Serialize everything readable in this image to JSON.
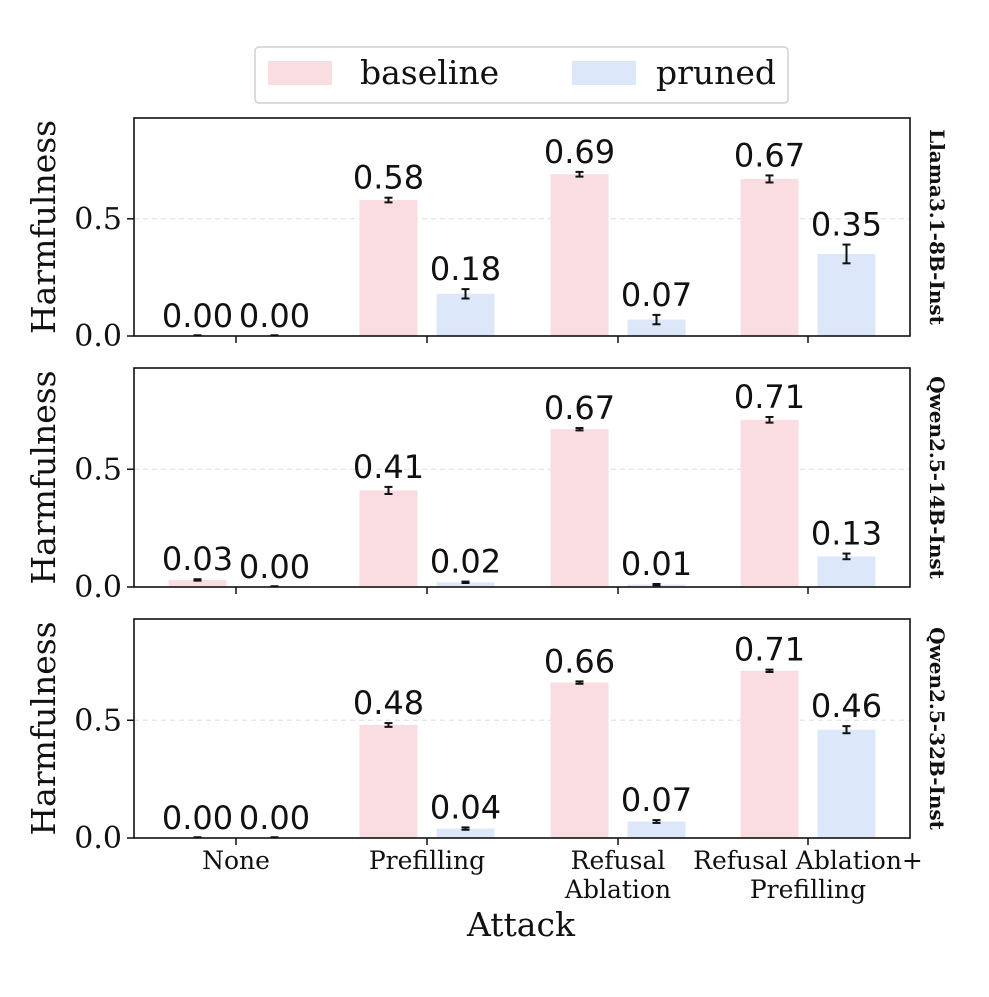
{
  "chart_data": {
    "type": "bar",
    "xlabel": "Attack",
    "ylabel": "Harmfulness",
    "ylim": [
      0,
      0.93
    ],
    "yticks": [
      "0.0",
      "0.5"
    ],
    "categories": [
      [
        "None"
      ],
      [
        "Prefilling"
      ],
      [
        "Refusal",
        "Ablation"
      ],
      [
        "Refusal Ablation+",
        "Prefilling"
      ]
    ],
    "legend": {
      "position": "top-center",
      "entries": [
        {
          "name": "baseline",
          "color": "#f9dde0"
        },
        {
          "name": "pruned",
          "color": "#dce7f9"
        }
      ]
    },
    "grid": "horizontal dashed at 0.5",
    "panels": [
      {
        "model": "Llama3.1-8B-Inst",
        "series": [
          {
            "name": "baseline",
            "values": [
              0.0,
              0.58,
              0.69,
              0.67
            ],
            "labels": [
              "0.00",
              "0.58",
              "0.69",
              "0.67"
            ],
            "errors": [
              0.0,
              0.01,
              0.01,
              0.015
            ]
          },
          {
            "name": "pruned",
            "values": [
              0.0,
              0.18,
              0.07,
              0.35
            ],
            "labels": [
              "0.00",
              "0.18",
              "0.07",
              "0.35"
            ],
            "errors": [
              0.0,
              0.02,
              0.02,
              0.04
            ]
          }
        ]
      },
      {
        "model": "Qwen2.5-14B-Inst",
        "series": [
          {
            "name": "baseline",
            "values": [
              0.03,
              0.41,
              0.67,
              0.71
            ],
            "labels": [
              "0.03",
              "0.41",
              "0.67",
              "0.71"
            ],
            "errors": [
              0.003,
              0.015,
              0.005,
              0.012
            ]
          },
          {
            "name": "pruned",
            "values": [
              0.0,
              0.02,
              0.01,
              0.13
            ],
            "labels": [
              "0.00",
              "0.02",
              "0.01",
              "0.13"
            ],
            "errors": [
              0.0,
              0.003,
              0.003,
              0.012
            ]
          }
        ]
      },
      {
        "model": "Qwen2.5-32B-Inst",
        "series": [
          {
            "name": "baseline",
            "values": [
              0.0,
              0.48,
              0.66,
              0.71
            ],
            "labels": [
              "0.00",
              "0.48",
              "0.66",
              "0.71"
            ],
            "errors": [
              0.0,
              0.008,
              0.005,
              0.005
            ]
          },
          {
            "name": "pruned",
            "values": [
              0.0,
              0.04,
              0.07,
              0.46
            ],
            "labels": [
              "0.00",
              "0.04",
              "0.07",
              "0.46"
            ],
            "errors": [
              0.0,
              0.005,
              0.006,
              0.015
            ]
          }
        ]
      }
    ]
  }
}
